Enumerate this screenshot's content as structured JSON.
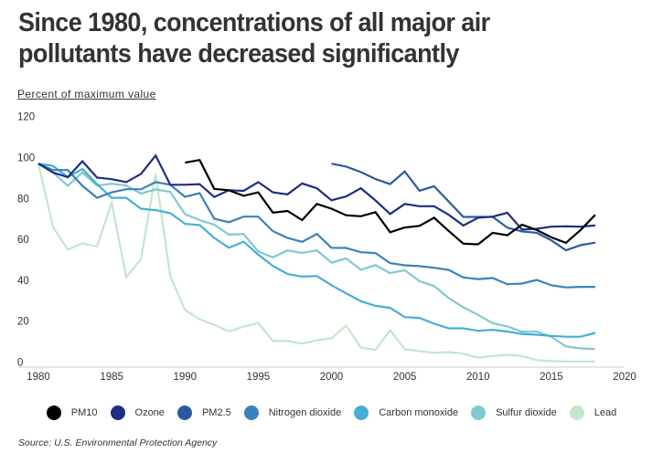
{
  "header": {
    "title": "Since 1980, concentrations of all major air pollutants have decreased significantly",
    "subtitle": "Percent of maximum value"
  },
  "source": "Source: U.S. Environmental Protection Agency",
  "chart_data": {
    "type": "line",
    "title": "Since 1980, concentrations of all major air pollutants have decreased significantly",
    "ylabel": "Percent of maximum value",
    "xlabel": "",
    "xlim": [
      1980,
      2020
    ],
    "ylim": [
      0,
      120
    ],
    "xticks": [
      1980,
      1985,
      1990,
      1995,
      2000,
      2005,
      2010,
      2015,
      2020
    ],
    "yticks": [
      0,
      20,
      40,
      60,
      80,
      100,
      120
    ],
    "grid": false,
    "legend_position": "bottom",
    "series": [
      {
        "name": "PM10",
        "color": "#000000",
        "start_year": 1990,
        "values": [
          97.5,
          98.8,
          84.7,
          84.0,
          81.3,
          83.0,
          73.1,
          73.9,
          69.4,
          77.3,
          75.0,
          71.8,
          71.3,
          73.3,
          63.5,
          65.8,
          66.6,
          70.6,
          64.1,
          57.9,
          57.6,
          63.2,
          62.0,
          67.2,
          64.6,
          61.0,
          58.3,
          64.6,
          72.0
        ]
      },
      {
        "name": "Ozone",
        "color": "#1f2d82",
        "start_year": 1980,
        "values": [
          97.0,
          92.7,
          90.4,
          98.2,
          90.2,
          89.4,
          88.0,
          92.0,
          101.0,
          86.7,
          86.7,
          87.0,
          80.7,
          84.0,
          83.7,
          88.0,
          83.0,
          82.0,
          87.3,
          85.0,
          79.1,
          81.0,
          85.0,
          79.0,
          72.4,
          77.3,
          76.2,
          76.2,
          72.0,
          66.8,
          70.6,
          71.1,
          73.0,
          64.8,
          65.2,
          66.2,
          66.4,
          66.2,
          66.8
        ]
      },
      {
        "name": "PM2.5",
        "color": "#2c5aa0",
        "start_year": 2000,
        "values": [
          97.0,
          95.6,
          92.9,
          89.5,
          87.0,
          93.2,
          83.8,
          86.0,
          78.5,
          71.0,
          71.0,
          71.0,
          65.7,
          63.9,
          63.2,
          59.5,
          54.7,
          57.2,
          58.4
        ]
      },
      {
        "name": "Nitrogen dioxide",
        "color": "#3a82b9",
        "start_year": 1980,
        "values": [
          97.0,
          93.9,
          93.9,
          86.2,
          80.3,
          83.0,
          84.5,
          84.5,
          88.0,
          86.7,
          80.8,
          82.6,
          70.1,
          68.4,
          71.1,
          71.1,
          64.0,
          60.7,
          58.8,
          62.7,
          55.9,
          55.8,
          53.7,
          53.3,
          48.4,
          47.3,
          46.9,
          46.1,
          45.1,
          41.4,
          40.6,
          41.1,
          38.1,
          38.4,
          40.2,
          37.6,
          36.5,
          36.8,
          36.8
        ]
      },
      {
        "name": "Carbon monoxide",
        "color": "#45afd4",
        "start_year": 1980,
        "values": [
          97.0,
          95.9,
          90.4,
          94.4,
          87.0,
          80.3,
          80.3,
          75.0,
          74.3,
          72.8,
          67.6,
          67.0,
          60.7,
          55.9,
          58.9,
          52.5,
          47.0,
          43.1,
          41.8,
          42.1,
          37.6,
          33.6,
          29.8,
          27.5,
          26.5,
          22.0,
          21.6,
          18.8,
          16.5,
          16.5,
          15.3,
          15.8,
          14.9,
          13.8,
          13.4,
          12.8,
          12.4,
          12.4,
          14.3
        ]
      },
      {
        "name": "Sulfur dioxide",
        "color": "#80c9cf",
        "start_year": 1980,
        "values": [
          97.0,
          92.7,
          86.2,
          92.7,
          86.3,
          87.2,
          86.3,
          82.4,
          84.4,
          83.2,
          72.3,
          69.4,
          67.2,
          62.3,
          62.6,
          54.1,
          51.2,
          54.6,
          53.4,
          54.6,
          48.6,
          50.7,
          45.2,
          47.4,
          43.5,
          44.9,
          39.6,
          37.2,
          31.3,
          26.8,
          23.1,
          19.0,
          17.5,
          14.9,
          14.9,
          12.4,
          7.7,
          6.7,
          6.4
        ]
      },
      {
        "name": "Lead",
        "color": "#c4e6cc",
        "start_year": 1980,
        "values": [
          97.0,
          66.0,
          55.0,
          58.0,
          56.5,
          78.0,
          41.5,
          50.5,
          92.0,
          42.0,
          25.5,
          21.0,
          18.3,
          15.0,
          17.4,
          19.2,
          10.3,
          10.3,
          9.0,
          10.7,
          11.6,
          17.9,
          7.1,
          6.0,
          15.6,
          6.3,
          5.4,
          4.5,
          4.9,
          4.1,
          2.2,
          3.0,
          3.6,
          3.0,
          1.0,
          0.5,
          0.3,
          0.3,
          0.3
        ]
      }
    ]
  }
}
